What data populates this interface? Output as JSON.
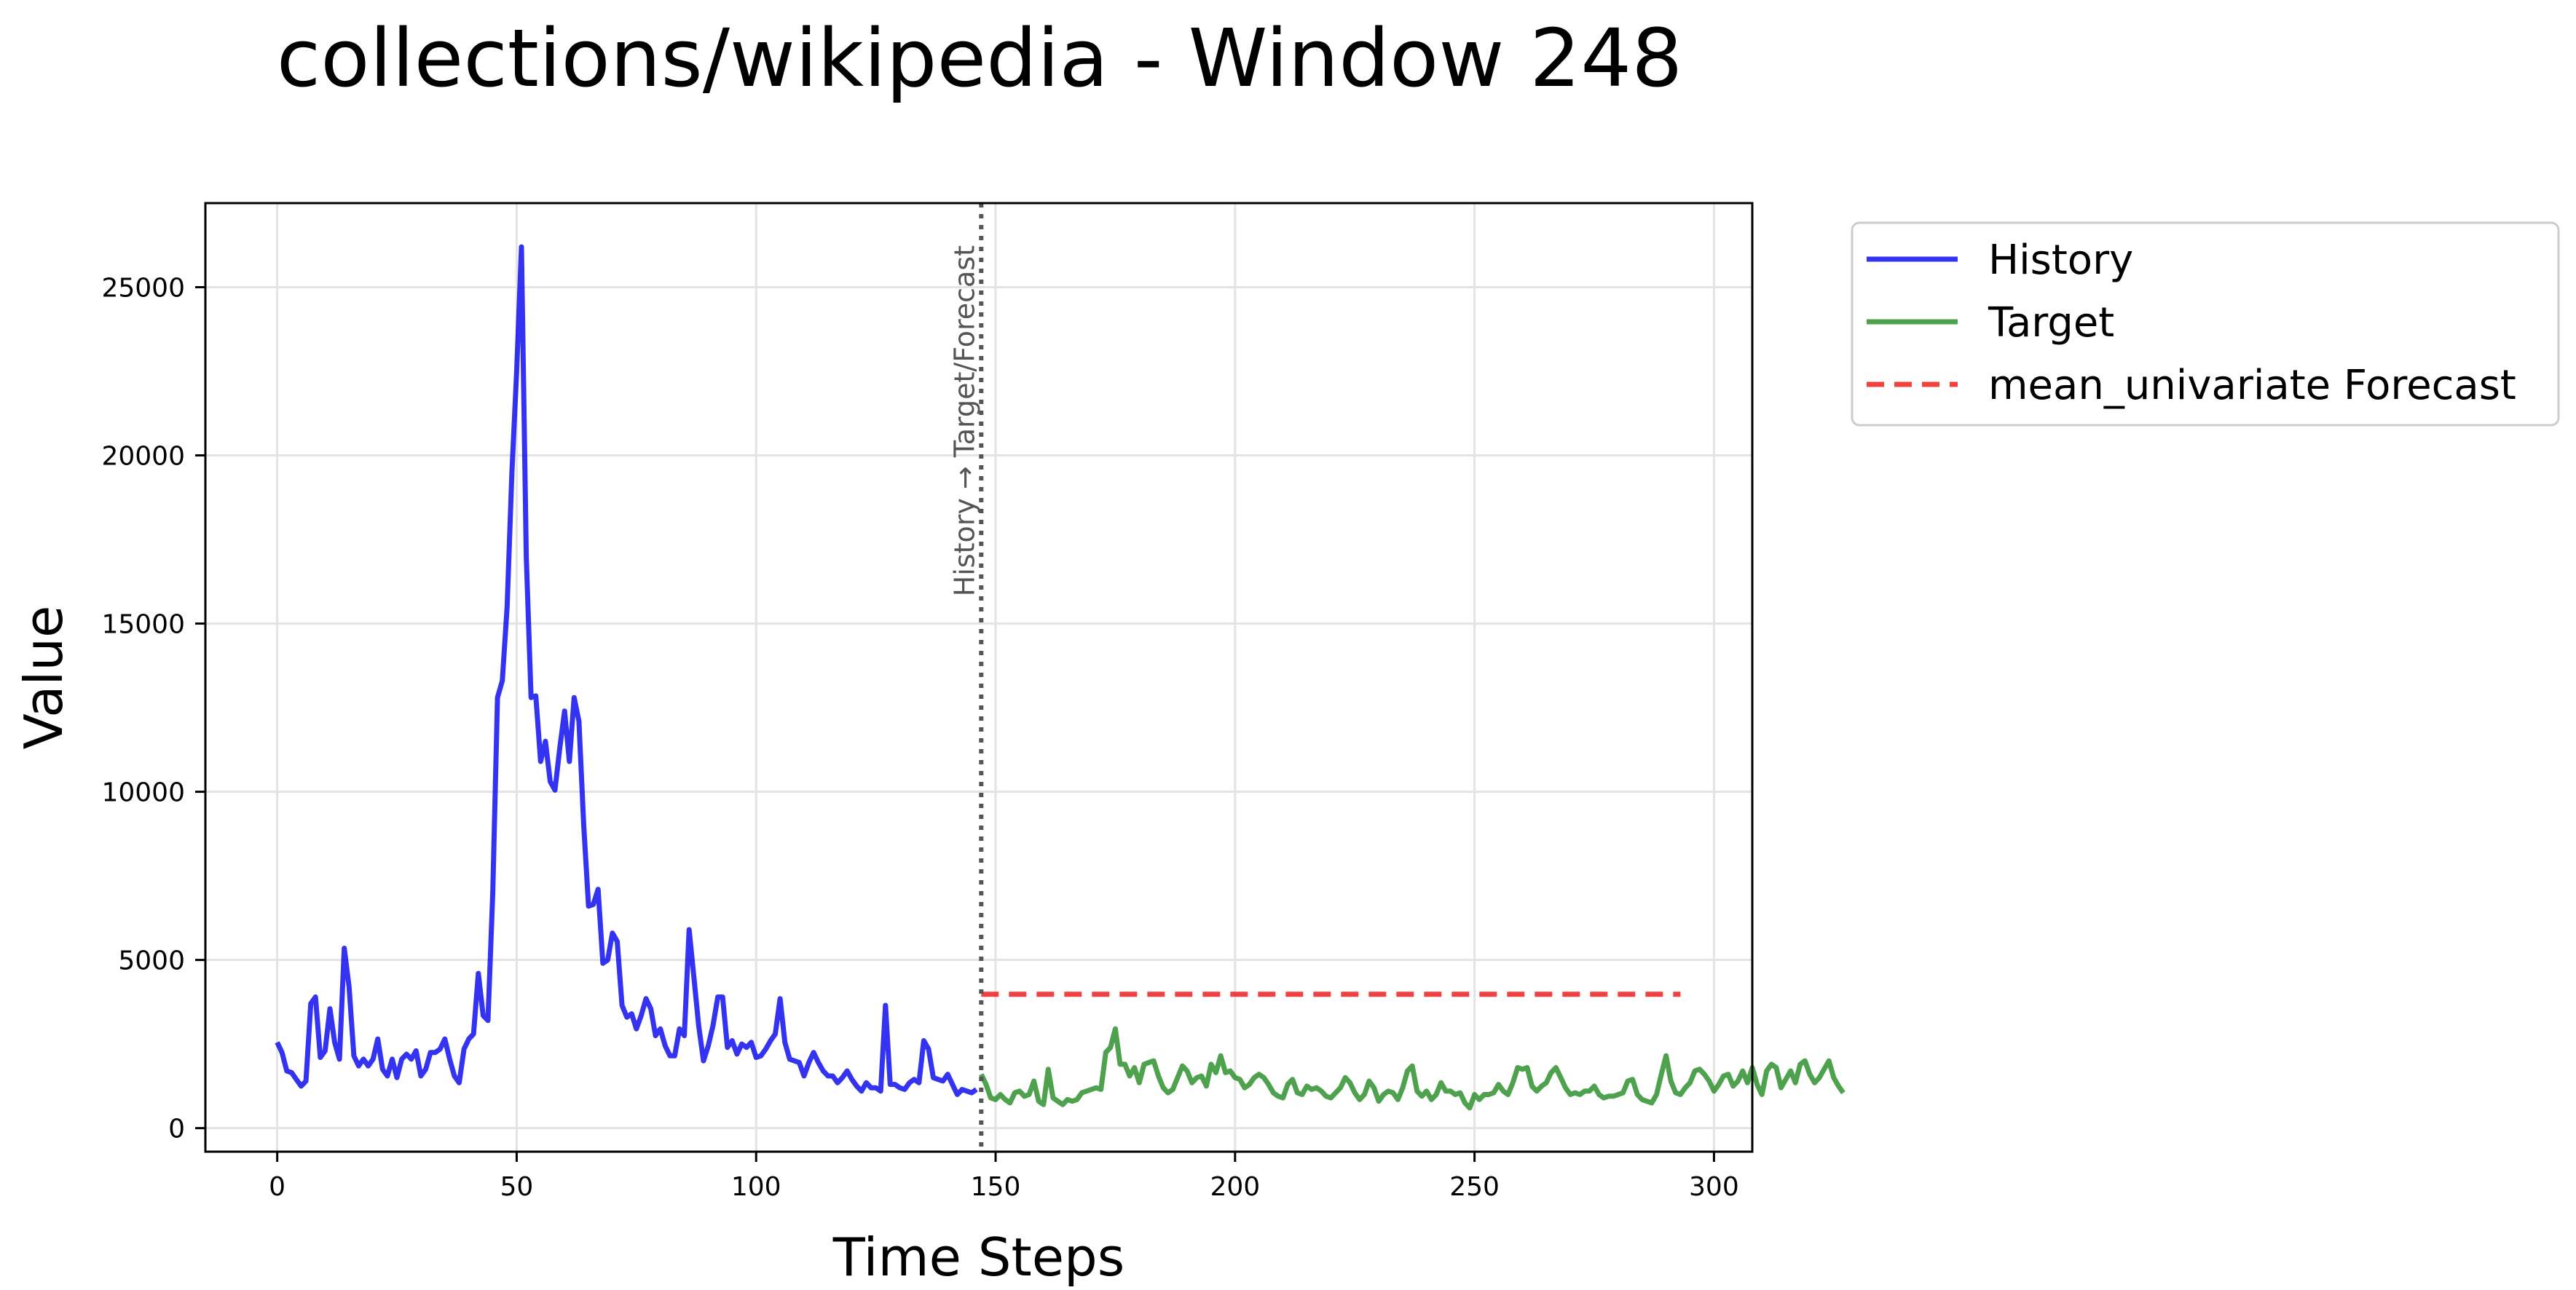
{
  "chart_data": {
    "type": "line",
    "title": "collections/wikipedia - Window 248",
    "xlabel": "Time Steps",
    "ylabel": "Value",
    "xlim": [
      -15,
      308
    ],
    "ylim": [
      -700,
      27500
    ],
    "xticks": [
      0,
      50,
      100,
      150,
      200,
      250,
      300
    ],
    "yticks": [
      0,
      5000,
      10000,
      15000,
      20000,
      25000
    ],
    "grid": true,
    "legend_position": "outside-right-top",
    "split_annotation": "History → Target/Forecast",
    "split_x": 147,
    "series": [
      {
        "name": "History",
        "color": "#0000ee",
        "style": "solid",
        "x_start": 0,
        "values": [
          2550,
          2250,
          1700,
          1650,
          1450,
          1250,
          1400,
          3700,
          3900,
          2100,
          2300,
          3550,
          2550,
          2050,
          5350,
          4200,
          2150,
          1850,
          2050,
          1850,
          2050,
          2650,
          1750,
          1550,
          2050,
          1500,
          2050,
          2200,
          2050,
          2300,
          1550,
          1750,
          2250,
          2250,
          2350,
          2650,
          2050,
          1550,
          1350,
          2350,
          2650,
          2800,
          4600,
          3350,
          3200,
          7000,
          12800,
          13300,
          15500,
          19500,
          22500,
          26200,
          17000,
          12800,
          12850,
          10900,
          11500,
          10300,
          10050,
          11300,
          12400,
          10900,
          12800,
          12100,
          9000,
          6600,
          6650,
          7100,
          4900,
          5000,
          5800,
          5550,
          3650,
          3300,
          3400,
          2950,
          3350,
          3850,
          3550,
          2750,
          2950,
          2450,
          2150,
          2150,
          2950,
          2750,
          5900,
          4500,
          3050,
          2000,
          2450,
          3050,
          3900,
          3900,
          2400,
          2600,
          2200,
          2500,
          2400,
          2550,
          2100,
          2150,
          2350,
          2600,
          2800,
          3850,
          2550,
          2050,
          2000,
          1950,
          1550,
          1950,
          2250,
          1950,
          1700,
          1550,
          1550,
          1350,
          1500,
          1700,
          1450,
          1250,
          1100,
          1350,
          1200,
          1200,
          1100,
          3650,
          1300,
          1300,
          1200,
          1150,
          1350,
          1450,
          1350,
          2600,
          2350,
          1500,
          1450,
          1400,
          1600,
          1300,
          1000,
          1150,
          1100,
          1050,
          1150
        ]
      },
      {
        "name": "Target",
        "color": "#228b22",
        "style": "solid",
        "x_start": 147,
        "values": [
          1600,
          1300,
          900,
          850,
          1000,
          850,
          750,
          1050,
          1100,
          950,
          1000,
          1400,
          800,
          700,
          1750,
          900,
          800,
          700,
          850,
          800,
          850,
          1050,
          1100,
          1150,
          1200,
          1150,
          2250,
          2400,
          2950,
          1900,
          1900,
          1550,
          1800,
          1350,
          1900,
          1950,
          2000,
          1550,
          1200,
          1050,
          1150,
          1500,
          1850,
          1700,
          1350,
          1500,
          1550,
          1250,
          1900,
          1650,
          2150,
          1650,
          1700,
          1500,
          1450,
          1200,
          1300,
          1500,
          1600,
          1500,
          1300,
          1050,
          950,
          900,
          1300,
          1450,
          1050,
          1000,
          1250,
          1150,
          1200,
          1100,
          950,
          900,
          1050,
          1200,
          1500,
          1350,
          1050,
          850,
          1000,
          1400,
          1200,
          800,
          1000,
          1100,
          1050,
          850,
          1200,
          1700,
          1850,
          1100,
          950,
          1100,
          850,
          1000,
          1350,
          1100,
          1100,
          1000,
          1050,
          750,
          600,
          1000,
          850,
          1000,
          1000,
          1050,
          1300,
          1100,
          1000,
          1350,
          1800,
          1750,
          1800,
          1250,
          1100,
          1250,
          1350,
          1650,
          1800,
          1500,
          1200,
          1000,
          1050,
          1000,
          1100,
          1100,
          1250,
          1000,
          900,
          950,
          950,
          1000,
          1050,
          1400,
          1450,
          1000,
          850,
          800,
          750,
          1000,
          1600,
          2150,
          1400,
          1050,
          1000,
          1200,
          1350,
          1700,
          1750,
          1600,
          1400,
          1100,
          1300,
          1550,
          1600,
          1250,
          1400,
          1700,
          1350,
          1800,
          1300,
          1000,
          1700,
          1900,
          1800,
          1200,
          1450,
          1700,
          1350,
          1900,
          2000,
          1600,
          1350,
          1500,
          1750,
          2000,
          1500,
          1250,
          1050
        ]
      },
      {
        "name": "mean_univariate Forecast",
        "color": "#ee1111",
        "style": "dashed",
        "x_start": 147,
        "x_end": 293,
        "constant_value": 3980
      }
    ]
  }
}
